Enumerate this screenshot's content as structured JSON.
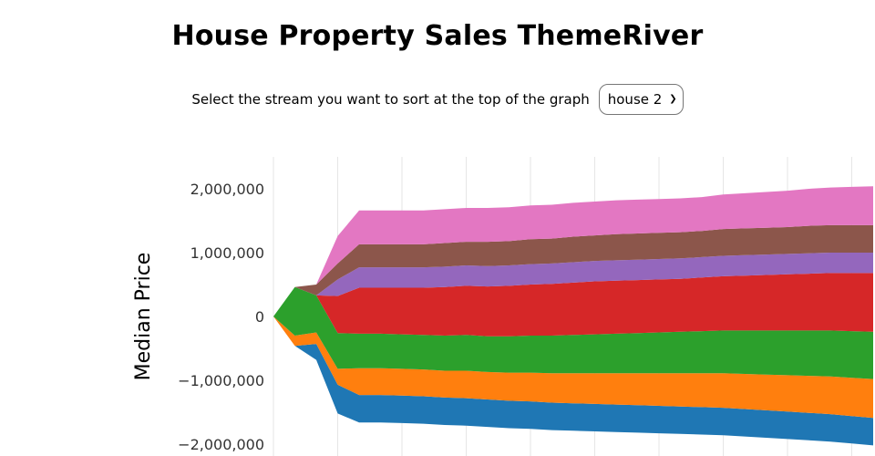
{
  "title": "House Property Sales ThemeRiver",
  "controls": {
    "label": "Select the stream you want to sort at the top of the graph",
    "selected": "house 2"
  },
  "chart_data": {
    "type": "area",
    "ylabel": "Median Price",
    "ylim": [
      -2200000,
      2400000
    ],
    "yticks": [
      2000000,
      1000000,
      0,
      -1000000,
      -2000000
    ],
    "ytick_labels": [
      "2,000,000",
      "1,000,000",
      "0",
      "−1,000,000",
      "−2,000,000"
    ],
    "grid": "vertical",
    "x": [
      0,
      1,
      2,
      3,
      4,
      5,
      6,
      7,
      8,
      9,
      10,
      11,
      12,
      13,
      14,
      15,
      16,
      17,
      18,
      19,
      20,
      21,
      22,
      23,
      24,
      25,
      26,
      27,
      28
    ],
    "baseline": [
      0,
      -460000,
      -680000,
      -1520000,
      -1660000,
      -1660000,
      -1670000,
      -1680000,
      -1700000,
      -1710000,
      -1730000,
      -1750000,
      -1760000,
      -1780000,
      -1790000,
      -1800000,
      -1810000,
      -1820000,
      -1830000,
      -1840000,
      -1850000,
      -1860000,
      -1880000,
      -1900000,
      -1920000,
      -1940000,
      -1960000,
      -1990000,
      -2020000
    ],
    "series": [
      {
        "color": "#1f77b4",
        "values": [
          0,
          0,
          250000,
          450000,
          430000,
          430000,
          430000,
          430000,
          430000,
          430000,
          430000,
          430000,
          430000,
          430000,
          430000,
          430000,
          430000,
          430000,
          430000,
          430000,
          430000,
          430000,
          430000,
          430000,
          430000,
          430000,
          430000,
          430000,
          430000
        ]
      },
      {
        "color": "#ff7f0e",
        "values": [
          0,
          160000,
          180000,
          250000,
          420000,
          420000,
          420000,
          420000,
          420000,
          430000,
          430000,
          440000,
          450000,
          460000,
          470000,
          480000,
          490000,
          500000,
          510000,
          520000,
          530000,
          540000,
          550000,
          560000,
          570000,
          580000,
          590000,
          600000,
          610000
        ]
      },
      {
        "color": "#2ca02c",
        "values": [
          0,
          760000,
          580000,
          560000,
          540000,
          540000,
          540000,
          540000,
          550000,
          560000,
          560000,
          570000,
          580000,
          590000,
          600000,
          610000,
          620000,
          630000,
          640000,
          650000,
          660000,
          670000,
          680000,
          690000,
          700000,
          710000,
          720000,
          730000,
          740000
        ]
      },
      {
        "color": "#d62728",
        "values": [
          0,
          0,
          0,
          580000,
          720000,
          720000,
          730000,
          740000,
          760000,
          770000,
          780000,
          790000,
          800000,
          810000,
          820000,
          830000,
          830000,
          830000,
          830000,
          830000,
          840000,
          850000,
          860000,
          870000,
          880000,
          890000,
          900000,
          910000,
          920000
        ]
      },
      {
        "color": "#9467bd",
        "values": [
          0,
          0,
          0,
          260000,
          320000,
          320000,
          320000,
          320000,
          320000,
          320000,
          320000,
          320000,
          320000,
          320000,
          320000,
          320000,
          320000,
          320000,
          320000,
          320000,
          320000,
          320000,
          320000,
          320000,
          320000,
          320000,
          320000,
          320000,
          320000
        ]
      },
      {
        "color": "#8c564b",
        "values": [
          0,
          0,
          170000,
          250000,
          360000,
          360000,
          360000,
          360000,
          370000,
          370000,
          380000,
          380000,
          390000,
          390000,
          400000,
          400000,
          410000,
          410000,
          410000,
          410000,
          410000,
          420000,
          420000,
          420000,
          420000,
          430000,
          430000,
          430000,
          430000
        ]
      },
      {
        "color": "#e377c2",
        "values": [
          0,
          0,
          0,
          430000,
          530000,
          530000,
          530000,
          530000,
          530000,
          530000,
          530000,
          530000,
          530000,
          530000,
          530000,
          530000,
          530000,
          530000,
          530000,
          530000,
          530000,
          540000,
          550000,
          560000,
          570000,
          580000,
          590000,
          600000,
          610000
        ]
      }
    ]
  }
}
